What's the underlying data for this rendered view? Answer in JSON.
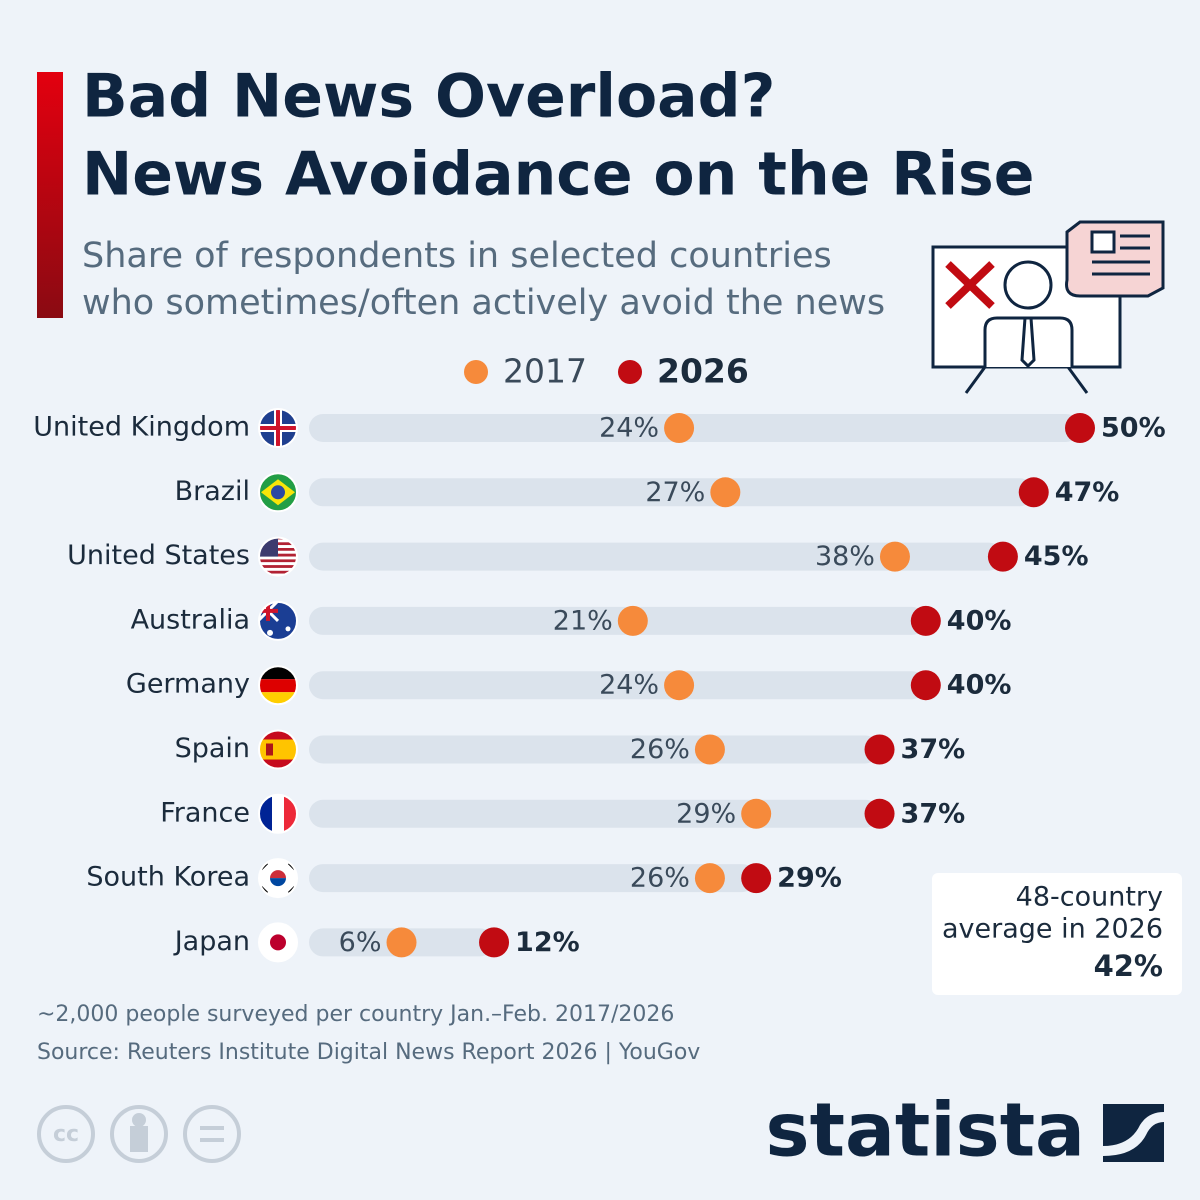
{
  "chart_data": {
    "type": "dumbbell",
    "title": [
      "Bad News Overload?",
      "News Avoidance on the Rise"
    ],
    "subtitle": [
      "Share of respondents in selected countries",
      "who sometimes/often actively avoid the news"
    ],
    "categories": [
      "United Kingdom",
      "Brazil",
      "United States",
      "Australia",
      "Germany",
      "Spain",
      "France",
      "South Korea",
      "Japan"
    ],
    "series": [
      {
        "name": "2017",
        "color": "#f68a3b",
        "values": [
          24,
          27,
          38,
          21,
          24,
          26,
          29,
          26,
          6
        ],
        "value_labels": [
          "24%",
          "27%",
          "38%",
          "21%",
          "24%",
          "26%",
          "29%",
          "26%",
          "6%"
        ]
      },
      {
        "name": "2026",
        "color": "#c10b12",
        "values": [
          50,
          47,
          45,
          40,
          40,
          37,
          37,
          29,
          12
        ],
        "value_labels": [
          "50%",
          "47%",
          "45%",
          "40%",
          "40%",
          "37%",
          "37%",
          "29%",
          "12%"
        ]
      }
    ],
    "annotation": {
      "lines": [
        "48-country",
        "average in 2026"
      ],
      "value": 42,
      "value_label": "42%"
    },
    "footnote": "~2,000 people surveyed per country Jan.–Feb. 2017/2026",
    "source": "Source: Reuters Institute Digital News Report 2026 | YouGov",
    "brand": "statista"
  }
}
